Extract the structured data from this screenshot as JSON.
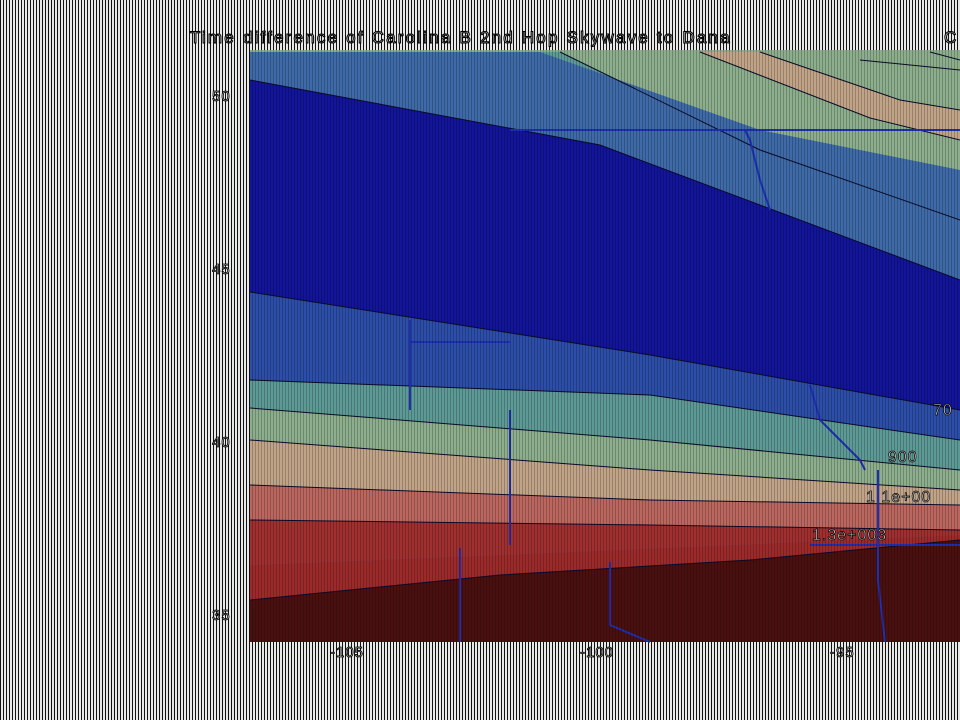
{
  "title": "Time difference of Carolina B 2nd Hop Skywave to Dana",
  "title_overflow": "C",
  "y_ticks": [
    "50",
    "45",
    "40",
    "35"
  ],
  "x_ticks": [
    "-105",
    "-100",
    "-95"
  ],
  "contour_labels": [
    "70",
    "900",
    "1 1e+00",
    "1.3e+003"
  ],
  "colors": {
    "deep_blue": "#12159a",
    "mid_blue": "#2d4ea8",
    "steel_blue": "#3e6aa8",
    "teal": "#5d9a96",
    "sage": "#8cae8c",
    "tan": "#c1a487",
    "rose": "#bb6760",
    "red": "#a02f2f",
    "dark_maroon": "#4a1010"
  }
}
